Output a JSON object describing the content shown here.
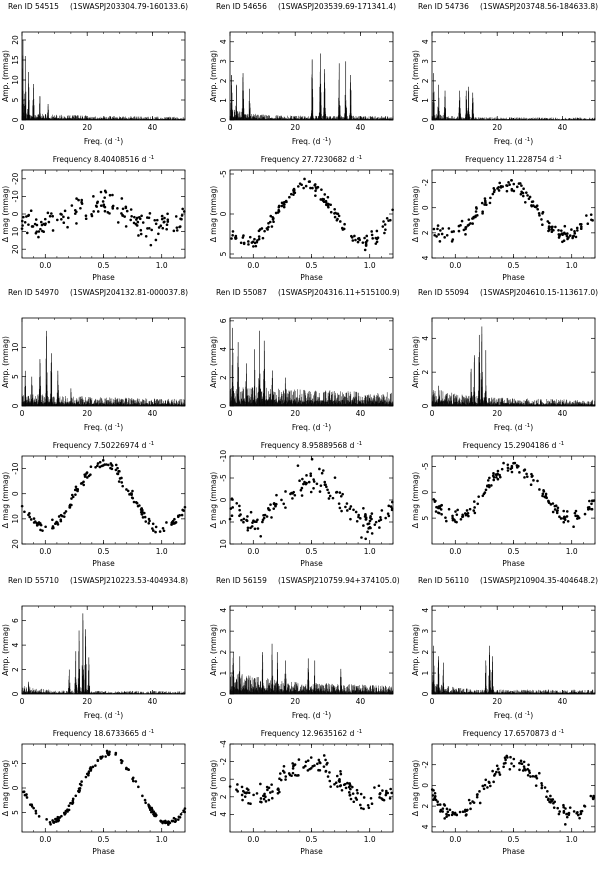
{
  "figure": {
    "per_label": {
      "xlabel": "Freq. (d",
      "xsup": "-1",
      "xclose": ")",
      "ylabel": "Amp. (mmag)"
    },
    "phase_label": {
      "xlabel": "Phase",
      "ylabel": "Δ mag  (mmag)",
      "freq_prefix": "Frequency",
      "freq_unit": "d",
      "freq_sup": "-1"
    }
  },
  "chart_data": [
    {
      "type": "line",
      "name": "periodogram",
      "star": {
        "ren_label": "Ren ID 54515",
        "swasp": "(1SWASPJ203304.79-160133.6)"
      },
      "xlim": [
        0,
        50
      ],
      "ylim": [
        0,
        22
      ],
      "xticks": [
        0,
        20,
        40
      ],
      "yticks": [
        0,
        5,
        10,
        15,
        20
      ],
      "peaks": [
        [
          0.3,
          20
        ],
        [
          1.0,
          16
        ],
        [
          2.0,
          12
        ],
        [
          3.5,
          9
        ],
        [
          5.5,
          6
        ],
        [
          8.0,
          4
        ]
      ],
      "noise": 1.5,
      "noise_decay": 4
    },
    {
      "type": "line",
      "name": "periodogram",
      "star": {
        "ren_label": "Ren ID 54656",
        "swasp": "(1SWASPJ203539.69-171341.4)"
      },
      "xlim": [
        0,
        50
      ],
      "ylim": [
        0,
        4.5
      ],
      "xticks": [
        0,
        20,
        40
      ],
      "yticks": [
        0,
        1,
        2,
        3,
        4
      ],
      "peaks": [
        [
          0.5,
          2.3
        ],
        [
          2.0,
          1.8
        ],
        [
          4.0,
          2.4
        ],
        [
          6.0,
          1.6
        ],
        [
          25.2,
          3.1
        ],
        [
          27.7,
          3.4
        ],
        [
          29.0,
          2.6
        ],
        [
          33.5,
          2.9
        ],
        [
          35.5,
          3.0
        ],
        [
          37.0,
          2.3
        ]
      ],
      "noise": 0.5,
      "noise_decay": 1
    },
    {
      "type": "line",
      "name": "periodogram",
      "star": {
        "ren_label": "Ren ID 54736",
        "swasp": "(1SWASPJ203748.56-184633.8)"
      },
      "xlim": [
        0,
        50
      ],
      "ylim": [
        0,
        4.5
      ],
      "xticks": [
        0,
        20,
        40
      ],
      "yticks": [
        0,
        1,
        2,
        3,
        4
      ],
      "peaks": [
        [
          0.5,
          2.4
        ],
        [
          2.0,
          1.8
        ],
        [
          4.0,
          1.5
        ],
        [
          8.5,
          1.5
        ],
        [
          10.5,
          1.5
        ],
        [
          11.2,
          1.7
        ],
        [
          12.5,
          1.4
        ]
      ],
      "noise": 0.3,
      "noise_decay": 1
    },
    {
      "type": "scatter",
      "name": "phase-curve",
      "frequency": "8.40408516",
      "xlim": [
        -0.2,
        1.2
      ],
      "ylim": [
        -25,
        25
      ],
      "yinvert": true,
      "xticks": [
        0.0,
        0.5,
        1.0
      ],
      "yticks": [
        -20,
        -10,
        0,
        10,
        20
      ],
      "amplitude": 6,
      "scatter": 7,
      "offset": 0,
      "phase0": 0.45,
      "count": 150
    },
    {
      "type": "scatter",
      "name": "phase-curve",
      "frequency": "27.7230682",
      "xlim": [
        -0.2,
        1.2
      ],
      "ylim": [
        -5.5,
        5.5
      ],
      "yinvert": true,
      "xticks": [
        0.0,
        0.5,
        1.0
      ],
      "yticks": [
        -5,
        0,
        5
      ],
      "amplitude": 3.5,
      "scatter": 0.8,
      "offset": 0,
      "phase0": 0.45,
      "count": 150
    },
    {
      "type": "scatter",
      "name": "phase-curve",
      "frequency": "11.228754",
      "xlim": [
        -0.2,
        1.2
      ],
      "ylim": [
        -3,
        4
      ],
      "yinvert": true,
      "xticks": [
        0.0,
        0.5,
        1.0
      ],
      "yticks": [
        -2,
        0,
        2,
        4
      ],
      "amplitude": 2,
      "scatter": 0.6,
      "offset": 0.2,
      "phase0": 0.45,
      "count": 150
    },
    {
      "type": "line",
      "name": "periodogram",
      "star": {
        "ren_label": "Ren ID 54970",
        "swasp": "(1SWASPJ204132.81-000037.8)"
      },
      "xlim": [
        0,
        50
      ],
      "ylim": [
        0,
        15
      ],
      "xticks": [
        0,
        20,
        40
      ],
      "yticks": [
        0,
        5,
        10
      ],
      "peaks": [
        [
          1.0,
          6
        ],
        [
          3.0,
          5
        ],
        [
          5.5,
          8
        ],
        [
          7.5,
          12.8
        ],
        [
          9.0,
          9
        ],
        [
          11.0,
          6
        ],
        [
          15.0,
          3
        ]
      ],
      "noise": 1.8,
      "noise_decay": 7
    },
    {
      "type": "line",
      "name": "periodogram",
      "star": {
        "ren_label": "Ren ID 55087",
        "swasp": "(1SWASPJ204316.11+515100.9)"
      },
      "xlim": [
        0,
        50
      ],
      "ylim": [
        0,
        6.2
      ],
      "xticks": [
        0,
        20,
        40
      ],
      "yticks": [
        0,
        2,
        4,
        6
      ],
      "peaks": [
        [
          0.8,
          5.5
        ],
        [
          2.5,
          4.5
        ],
        [
          5.0,
          3.0
        ],
        [
          7.5,
          4.0
        ],
        [
          9.0,
          5.3
        ],
        [
          10.5,
          4.6
        ],
        [
          13.0,
          2.5
        ],
        [
          17.0,
          2.0
        ]
      ],
      "noise": 1.2,
      "noise_decay": 12
    },
    {
      "type": "line",
      "name": "periodogram",
      "star": {
        "ren_label": "Ren ID 55094",
        "swasp": "(1SWASPJ204610.15-113617.0)"
      },
      "xlim": [
        0,
        50
      ],
      "ylim": [
        0,
        5.2
      ],
      "xticks": [
        0,
        20,
        40
      ],
      "yticks": [
        0,
        2,
        4
      ],
      "peaks": [
        [
          13.0,
          3.0
        ],
        [
          14.5,
          4.2
        ],
        [
          15.3,
          4.7
        ],
        [
          16.5,
          3.3
        ],
        [
          12.0,
          2.2
        ],
        [
          2.0,
          1.2
        ]
      ],
      "noise": 0.9,
      "noise_decay": 2
    },
    {
      "type": "scatter",
      "name": "phase-curve",
      "frequency": "7.50226974",
      "xlim": [
        -0.2,
        1.2
      ],
      "ylim": [
        -15,
        20
      ],
      "yinvert": true,
      "xticks": [
        0.0,
        0.5,
        1.0
      ],
      "yticks": [
        -10,
        0,
        10,
        20
      ],
      "amplitude": 13,
      "scatter": 2,
      "offset": 1,
      "phase0": 0.5,
      "count": 150
    },
    {
      "type": "scatter",
      "name": "phase-curve",
      "frequency": "8.95889568",
      "xlim": [
        -0.2,
        1.2
      ],
      "ylim": [
        -10,
        10
      ],
      "yinvert": true,
      "xticks": [
        0.0,
        0.5,
        1.0
      ],
      "yticks": [
        -10,
        -5,
        0,
        5,
        10
      ],
      "amplitude": 5,
      "scatter": 2.5,
      "offset": 0,
      "phase0": 0.5,
      "count": 150
    },
    {
      "type": "scatter",
      "name": "phase-curve",
      "frequency": "15.2904186",
      "xlim": [
        -0.2,
        1.2
      ],
      "ylim": [
        -7,
        10
      ],
      "yinvert": true,
      "xticks": [
        0.0,
        0.5,
        1.0
      ],
      "yticks": [
        -5,
        0,
        5
      ],
      "amplitude": 5,
      "scatter": 1.2,
      "offset": 0,
      "phase0": 0.5,
      "count": 150
    },
    {
      "type": "line",
      "name": "periodogram",
      "star": {
        "ren_label": "Ren ID 55710",
        "swasp": "(1SWASPJ210223.53-404934.8)"
      },
      "xlim": [
        0,
        50
      ],
      "ylim": [
        0,
        7.2
      ],
      "xticks": [
        0,
        20,
        40
      ],
      "yticks": [
        0,
        2,
        4,
        6
      ],
      "peaks": [
        [
          16.5,
          3.5
        ],
        [
          17.5,
          5.2
        ],
        [
          18.67,
          6.6
        ],
        [
          19.5,
          5.3
        ],
        [
          20.5,
          3.0
        ],
        [
          14.5,
          2.0
        ],
        [
          2.0,
          1.0
        ]
      ],
      "noise": 0.6,
      "noise_decay": 1
    },
    {
      "type": "line",
      "name": "periodogram",
      "star": {
        "ren_label": "Ren ID 56159",
        "swasp": "(1SWASPJ210759.94+374105.0)"
      },
      "xlim": [
        0,
        50
      ],
      "ylim": [
        0,
        4.2
      ],
      "xticks": [
        0,
        20,
        40
      ],
      "yticks": [
        0,
        1,
        2,
        3,
        4
      ],
      "peaks": [
        [
          1.0,
          2.0
        ],
        [
          3.0,
          1.8
        ],
        [
          10.0,
          2.0
        ],
        [
          12.9,
          2.4
        ],
        [
          14.5,
          2.0
        ],
        [
          17.0,
          1.6
        ],
        [
          24.0,
          1.7
        ],
        [
          26.0,
          1.6
        ],
        [
          34.0,
          1.2
        ]
      ],
      "noise": 0.9,
      "noise_decay": 3
    },
    {
      "type": "line",
      "name": "periodogram",
      "star": {
        "ren_label": "Ren ID 56110",
        "swasp": "(1SWASPJ210904.35-404648.2)"
      },
      "xlim": [
        0,
        50
      ],
      "ylim": [
        0,
        4.2
      ],
      "xticks": [
        0,
        20,
        40
      ],
      "yticks": [
        0,
        1,
        2,
        3,
        4
      ],
      "peaks": [
        [
          0.5,
          2.3
        ],
        [
          2.0,
          1.8
        ],
        [
          3.5,
          1.5
        ],
        [
          16.5,
          1.6
        ],
        [
          17.66,
          2.3
        ],
        [
          18.5,
          1.8
        ]
      ],
      "noise": 0.5,
      "noise_decay": 1
    },
    {
      "type": "scatter",
      "name": "phase-curve",
      "frequency": "18.6733665",
      "xlim": [
        -0.2,
        1.2
      ],
      "ylim": [
        -9,
        9
      ],
      "yinvert": true,
      "xticks": [
        0.0,
        0.5,
        1.0
      ],
      "yticks": [
        -5,
        0,
        5
      ],
      "amplitude": 7,
      "scatter": 0.6,
      "offset": 0,
      "phase0": 0.55,
      "count": 150
    },
    {
      "type": "scatter",
      "name": "phase-curve",
      "frequency": "12.9635162",
      "xlim": [
        -0.2,
        1.2
      ],
      "ylim": [
        -4,
        6
      ],
      "yinvert": true,
      "xticks": [
        0.0,
        0.5,
        1.0
      ],
      "yticks": [
        -4,
        -2,
        0,
        2,
        4
      ],
      "amplitude": 2,
      "scatter": 1.2,
      "offset": 0.3,
      "phase0": 0.5,
      "count": 150
    },
    {
      "type": "scatter",
      "name": "phase-curve",
      "frequency": "17.6570873",
      "xlim": [
        -0.2,
        1.2
      ],
      "ylim": [
        -4,
        4.5
      ],
      "yinvert": true,
      "xticks": [
        0.0,
        0.5,
        1.0
      ],
      "yticks": [
        -2,
        0,
        2,
        4
      ],
      "amplitude": 2.5,
      "scatter": 0.6,
      "offset": 0.2,
      "phase0": 0.5,
      "count": 150
    }
  ]
}
